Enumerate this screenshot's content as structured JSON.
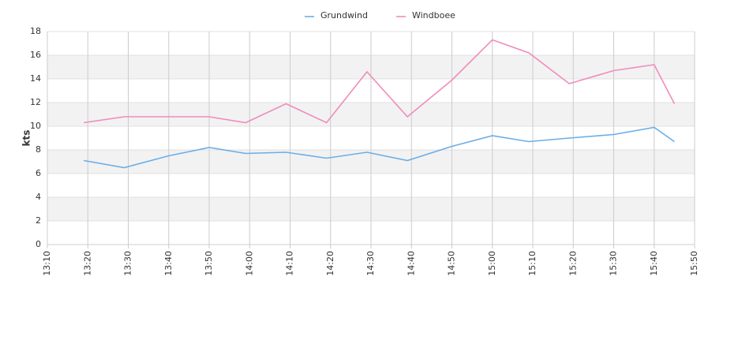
{
  "chart_data": {
    "type": "line",
    "y_label": "kts",
    "x": [
      "13:19",
      "13:29",
      "13:40",
      "13:50",
      "13:59",
      "14:09",
      "14:19",
      "14:29",
      "14:39",
      "14:50",
      "15:00",
      "15:09",
      "15:19",
      "15:30",
      "15:40",
      "15:45"
    ],
    "series": [
      {
        "name": "Grundwind",
        "color": "#6aaee8",
        "values": [
          7.1,
          6.5,
          7.5,
          8.2,
          7.7,
          7.8,
          7.3,
          7.8,
          7.1,
          8.3,
          9.2,
          8.7,
          9.0,
          9.3,
          9.9,
          8.7
        ]
      },
      {
        "name": "Windboee",
        "color": "#f08cbc",
        "values": [
          10.3,
          10.8,
          10.8,
          10.8,
          10.3,
          11.9,
          10.3,
          14.6,
          10.8,
          13.9,
          17.3,
          16.2,
          13.6,
          14.7,
          15.2,
          11.9
        ]
      }
    ],
    "xlim": [
      "13:10",
      "15:50"
    ],
    "xticks": [
      "13:10",
      "13:20",
      "13:30",
      "13:40",
      "13:50",
      "14:00",
      "14:10",
      "14:20",
      "14:30",
      "14:40",
      "14:50",
      "15:00",
      "15:10",
      "15:20",
      "15:30",
      "15:40",
      "15:50"
    ],
    "ylim": [
      0,
      18
    ],
    "yticks": [
      0,
      2,
      4,
      6,
      8,
      10,
      12,
      14,
      16,
      18
    ],
    "grid": true,
    "banded": true,
    "legend": "top"
  }
}
